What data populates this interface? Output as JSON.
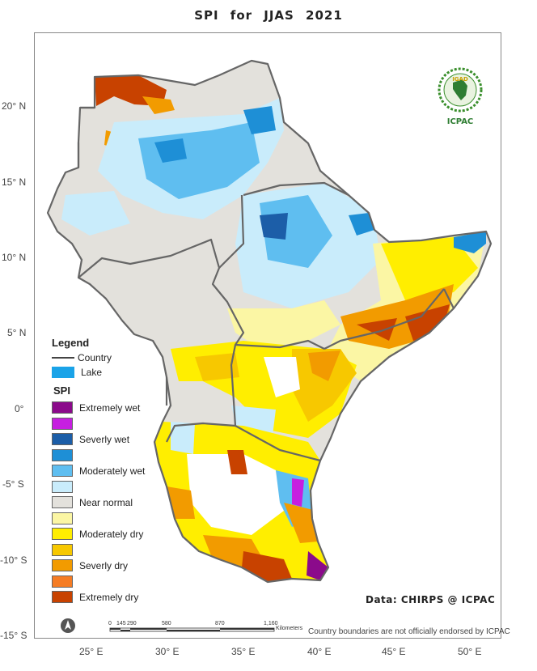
{
  "title": "SPI   for    JJAS  2021",
  "axes": {
    "lat_labels": [
      "20° N",
      "15° N",
      "10° N",
      "5° N",
      "0°",
      "-5° S",
      "-10° S",
      "-15° S"
    ],
    "lon_labels": [
      "25° E",
      "30° E",
      "35° E",
      "40° E",
      "45° E",
      "50° E"
    ]
  },
  "legend": {
    "title": "Legend",
    "country_label": "Country",
    "lake_label": "Lake",
    "spi_title": "SPI",
    "spi_classes": [
      {
        "label": "Extremely wet",
        "color": "#8b0a8b"
      },
      {
        "label": "",
        "color": "#c61fe0"
      },
      {
        "label": "Severly wet",
        "color": "#1c5ea8"
      },
      {
        "label": "",
        "color": "#1e8fd6"
      },
      {
        "label": "Moderately wet",
        "color": "#5fbef0"
      },
      {
        "label": "",
        "color": "#c9ecfb"
      },
      {
        "label": "Near normal",
        "color": "#e3e1dc"
      },
      {
        "label": "",
        "color": "#fbf6a4"
      },
      {
        "label": "Moderately dry",
        "color": "#ffee00"
      },
      {
        "label": "",
        "color": "#f7c800"
      },
      {
        "label": "Severly dry",
        "color": "#f29b00"
      },
      {
        "label": "",
        "color": "#f57c24"
      },
      {
        "label": "Extremely dry",
        "color": "#c84200"
      }
    ]
  },
  "logo": {
    "text_top": "IGAD",
    "text_bottom": "ICPAC"
  },
  "credit": "Data: CHIRPS @ ICPAC",
  "disclaimer": "Country boundaries are not officially endorsed by ICPAC",
  "scalebar": {
    "ticks": [
      "0",
      "145",
      "290",
      "580",
      "870",
      "1,160"
    ],
    "unit": "Kilometers"
  },
  "colors": {
    "country_border": "#666666",
    "lake": "#1aa3e8"
  }
}
